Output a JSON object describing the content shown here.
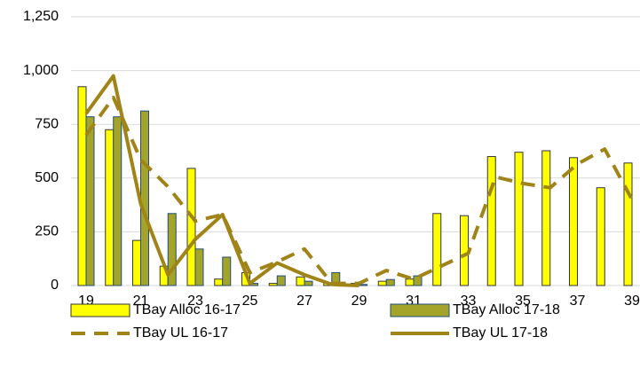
{
  "chart_data": {
    "type": "bar-line",
    "categories": [
      "19",
      null,
      "21",
      null,
      "23",
      null,
      "25",
      null,
      "27",
      null,
      "29",
      null,
      "31",
      null,
      "33",
      null,
      "35",
      null,
      "37",
      null,
      "39"
    ],
    "series": [
      {
        "name": "TBay Alloc 16-17",
        "type": "bar",
        "color": "#ffff00",
        "stroke": "#333333",
        "values": [
          925,
          725,
          210,
          90,
          545,
          30,
          60,
          10,
          40,
          10,
          10,
          20,
          30,
          335,
          325,
          600,
          620,
          627,
          595,
          455,
          570
        ]
      },
      {
        "name": "TBay Alloc 17-18",
        "type": "bar",
        "color": "#a4a42a",
        "stroke": "#1f4e79",
        "values": [
          785,
          785,
          812,
          335,
          170,
          132,
          10,
          45,
          20,
          60,
          5,
          28,
          45,
          0,
          0,
          0,
          0,
          0,
          0,
          0,
          0
        ]
      },
      {
        "name": "TBay UL 16-17",
        "type": "line",
        "dash": true,
        "color": "#a08418",
        "values": [
          700,
          875,
          585,
          460,
          300,
          330,
          60,
          110,
          170,
          10,
          10,
          70,
          30,
          90,
          150,
          505,
          475,
          455,
          565,
          635,
          400
        ]
      },
      {
        "name": "TBay UL 17-18",
        "type": "line",
        "dash": false,
        "color": "#a08418",
        "values": [
          800,
          975,
          380,
          50,
          215,
          330,
          10,
          105,
          50,
          5,
          0,
          null,
          null,
          null,
          null,
          null,
          null,
          null,
          null,
          null,
          null
        ]
      }
    ],
    "ylim": [
      0,
      1250
    ],
    "yticks": [
      0,
      250,
      500,
      750,
      {
        "value": 1000,
        "label": "1,000"
      },
      {
        "value": 1250,
        "label": "1,250"
      }
    ],
    "grid": true,
    "legend": "bottom"
  }
}
